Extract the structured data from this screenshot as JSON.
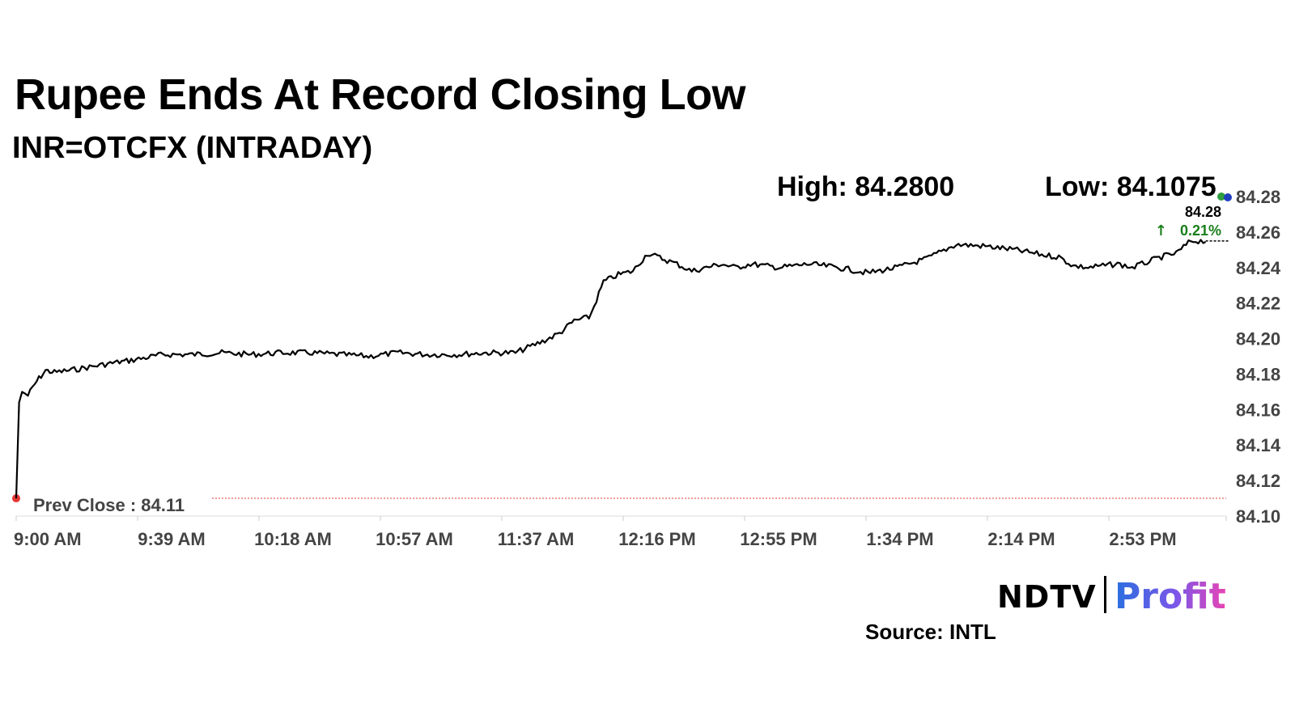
{
  "title": "Rupee Ends At Record Closing Low",
  "subtitle": "INR=OTCFX (INTRADAY)",
  "high_label": "High: 84.2800",
  "low_label": "Low: 84.1075",
  "last_value_label": "84.28",
  "change_label": "0.21%",
  "prev_close_label": "Prev Close : 84.11",
  "brand": {
    "ndtv": "NDTV",
    "profit": "Profit"
  },
  "source": "Source: INTL",
  "colors": {
    "line": "#000000",
    "prev_close": "#e53935",
    "change_up": "#1a7f1a",
    "last_dot": "#1f3fbf",
    "high_dot": "#2e9e3e"
  },
  "chart_data": {
    "type": "line",
    "title": "Rupee Ends At Record Closing Low",
    "subtitle": "INR=OTCFX (INTRADAY)",
    "x_tick_labels": [
      "9:00 AM",
      "9:39 AM",
      "10:18 AM",
      "10:57 AM",
      "11:37 AM",
      "12:16 PM",
      "12:55 PM",
      "1:34 PM",
      "2:14 PM",
      "2:53 PM"
    ],
    "y_tick_labels": [
      "84.28",
      "84.26",
      "84.24",
      "84.22",
      "84.20",
      "84.18",
      "84.16",
      "84.14",
      "84.12",
      "84.10"
    ],
    "ylim": [
      84.1,
      84.28
    ],
    "x_minutes_range": [
      0,
      412
    ],
    "prev_close": 84.11,
    "high": 84.28,
    "low": 84.1075,
    "last": 84.28,
    "change_pct": 0.21,
    "series": [
      {
        "x": [
          0,
          1,
          2,
          4,
          7,
          10,
          13,
          18,
          25,
          32,
          40,
          50,
          60,
          70,
          80,
          90,
          100,
          110,
          120,
          130,
          140,
          150,
          160,
          170,
          180,
          185,
          190,
          195,
          196,
          200,
          205,
          210,
          215,
          220,
          225,
          230,
          235,
          240,
          245,
          250,
          260,
          270,
          280,
          290,
          300,
          310,
          320,
          330,
          340,
          350,
          355,
          360,
          365,
          370,
          375,
          380,
          385,
          390,
          395,
          400,
          405
        ],
        "y": [
          84.11,
          84.164,
          84.17,
          84.168,
          84.176,
          84.182,
          84.181,
          84.182,
          84.184,
          84.186,
          84.188,
          84.191,
          84.191,
          84.192,
          84.191,
          84.192,
          84.192,
          84.191,
          84.19,
          84.192,
          84.191,
          84.191,
          84.192,
          84.192,
          84.199,
          84.203,
          84.21,
          84.212,
          84.215,
          84.232,
          84.236,
          84.238,
          84.248,
          84.245,
          84.242,
          84.238,
          84.24,
          84.242,
          84.24,
          84.242,
          84.24,
          84.242,
          84.24,
          84.237,
          84.24,
          84.245,
          84.253,
          84.252,
          84.25,
          84.247,
          84.246,
          84.241,
          84.24,
          84.241,
          84.242,
          84.24,
          84.243,
          84.246,
          84.248,
          84.255,
          84.255
        ]
      }
    ]
  }
}
